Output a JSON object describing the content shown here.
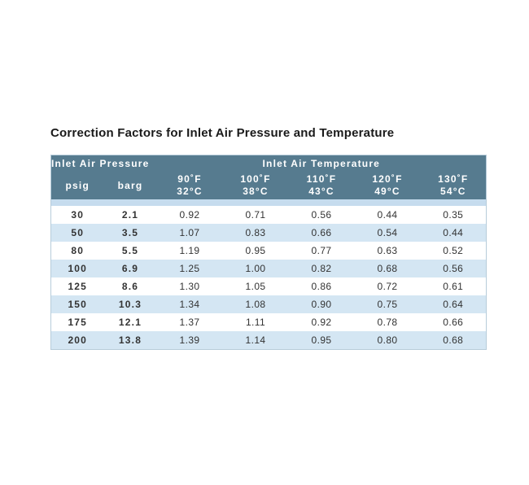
{
  "title": "Correction Factors for Inlet Air Pressure and Temperature",
  "table": {
    "group_headers": [
      {
        "label": "Inlet Air Pressure",
        "span": 2
      },
      {
        "label": "Inlet Air Temperature",
        "span": 5
      }
    ],
    "columns": [
      {
        "label": "psig"
      },
      {
        "label": "barg"
      },
      {
        "fahrenheit": "90˚F",
        "celsius": "32°C"
      },
      {
        "fahrenheit": "100˚F",
        "celsius": "38°C"
      },
      {
        "fahrenheit": "110˚F",
        "celsius": "43°C"
      },
      {
        "fahrenheit": "120˚F",
        "celsius": "49°C"
      },
      {
        "fahrenheit": "130˚F",
        "celsius": "54°C"
      }
    ],
    "rows": [
      {
        "psig": "30",
        "barg": "2.1",
        "factors": [
          "0.92",
          "0.71",
          "0.56",
          "0.44",
          "0.35"
        ]
      },
      {
        "psig": "50",
        "barg": "3.5",
        "factors": [
          "1.07",
          "0.83",
          "0.66",
          "0.54",
          "0.44"
        ]
      },
      {
        "psig": "80",
        "barg": "5.5",
        "factors": [
          "1.19",
          "0.95",
          "0.77",
          "0.63",
          "0.52"
        ]
      },
      {
        "psig": "100",
        "barg": "6.9",
        "factors": [
          "1.25",
          "1.00",
          "0.82",
          "0.68",
          "0.56"
        ]
      },
      {
        "psig": "125",
        "barg": "8.6",
        "factors": [
          "1.30",
          "1.05",
          "0.86",
          "0.72",
          "0.61"
        ]
      },
      {
        "psig": "150",
        "barg": "10.3",
        "factors": [
          "1.34",
          "1.08",
          "0.90",
          "0.75",
          "0.64"
        ]
      },
      {
        "psig": "175",
        "barg": "12.1",
        "factors": [
          "1.37",
          "1.11",
          "0.92",
          "0.78",
          "0.66"
        ]
      },
      {
        "psig": "200",
        "barg": "13.8",
        "factors": [
          "1.39",
          "1.14",
          "0.95",
          "0.80",
          "0.68"
        ]
      }
    ]
  },
  "colors": {
    "header_bg": "#567b8f",
    "header_text": "#ffffff",
    "row_bg": "#ffffff",
    "row_alt_bg": "#d4e6f3",
    "spacer_bg": "#c6dcee",
    "border": "#b7ccda",
    "title_text": "#1a1a1a",
    "cell_text": "#333333"
  }
}
